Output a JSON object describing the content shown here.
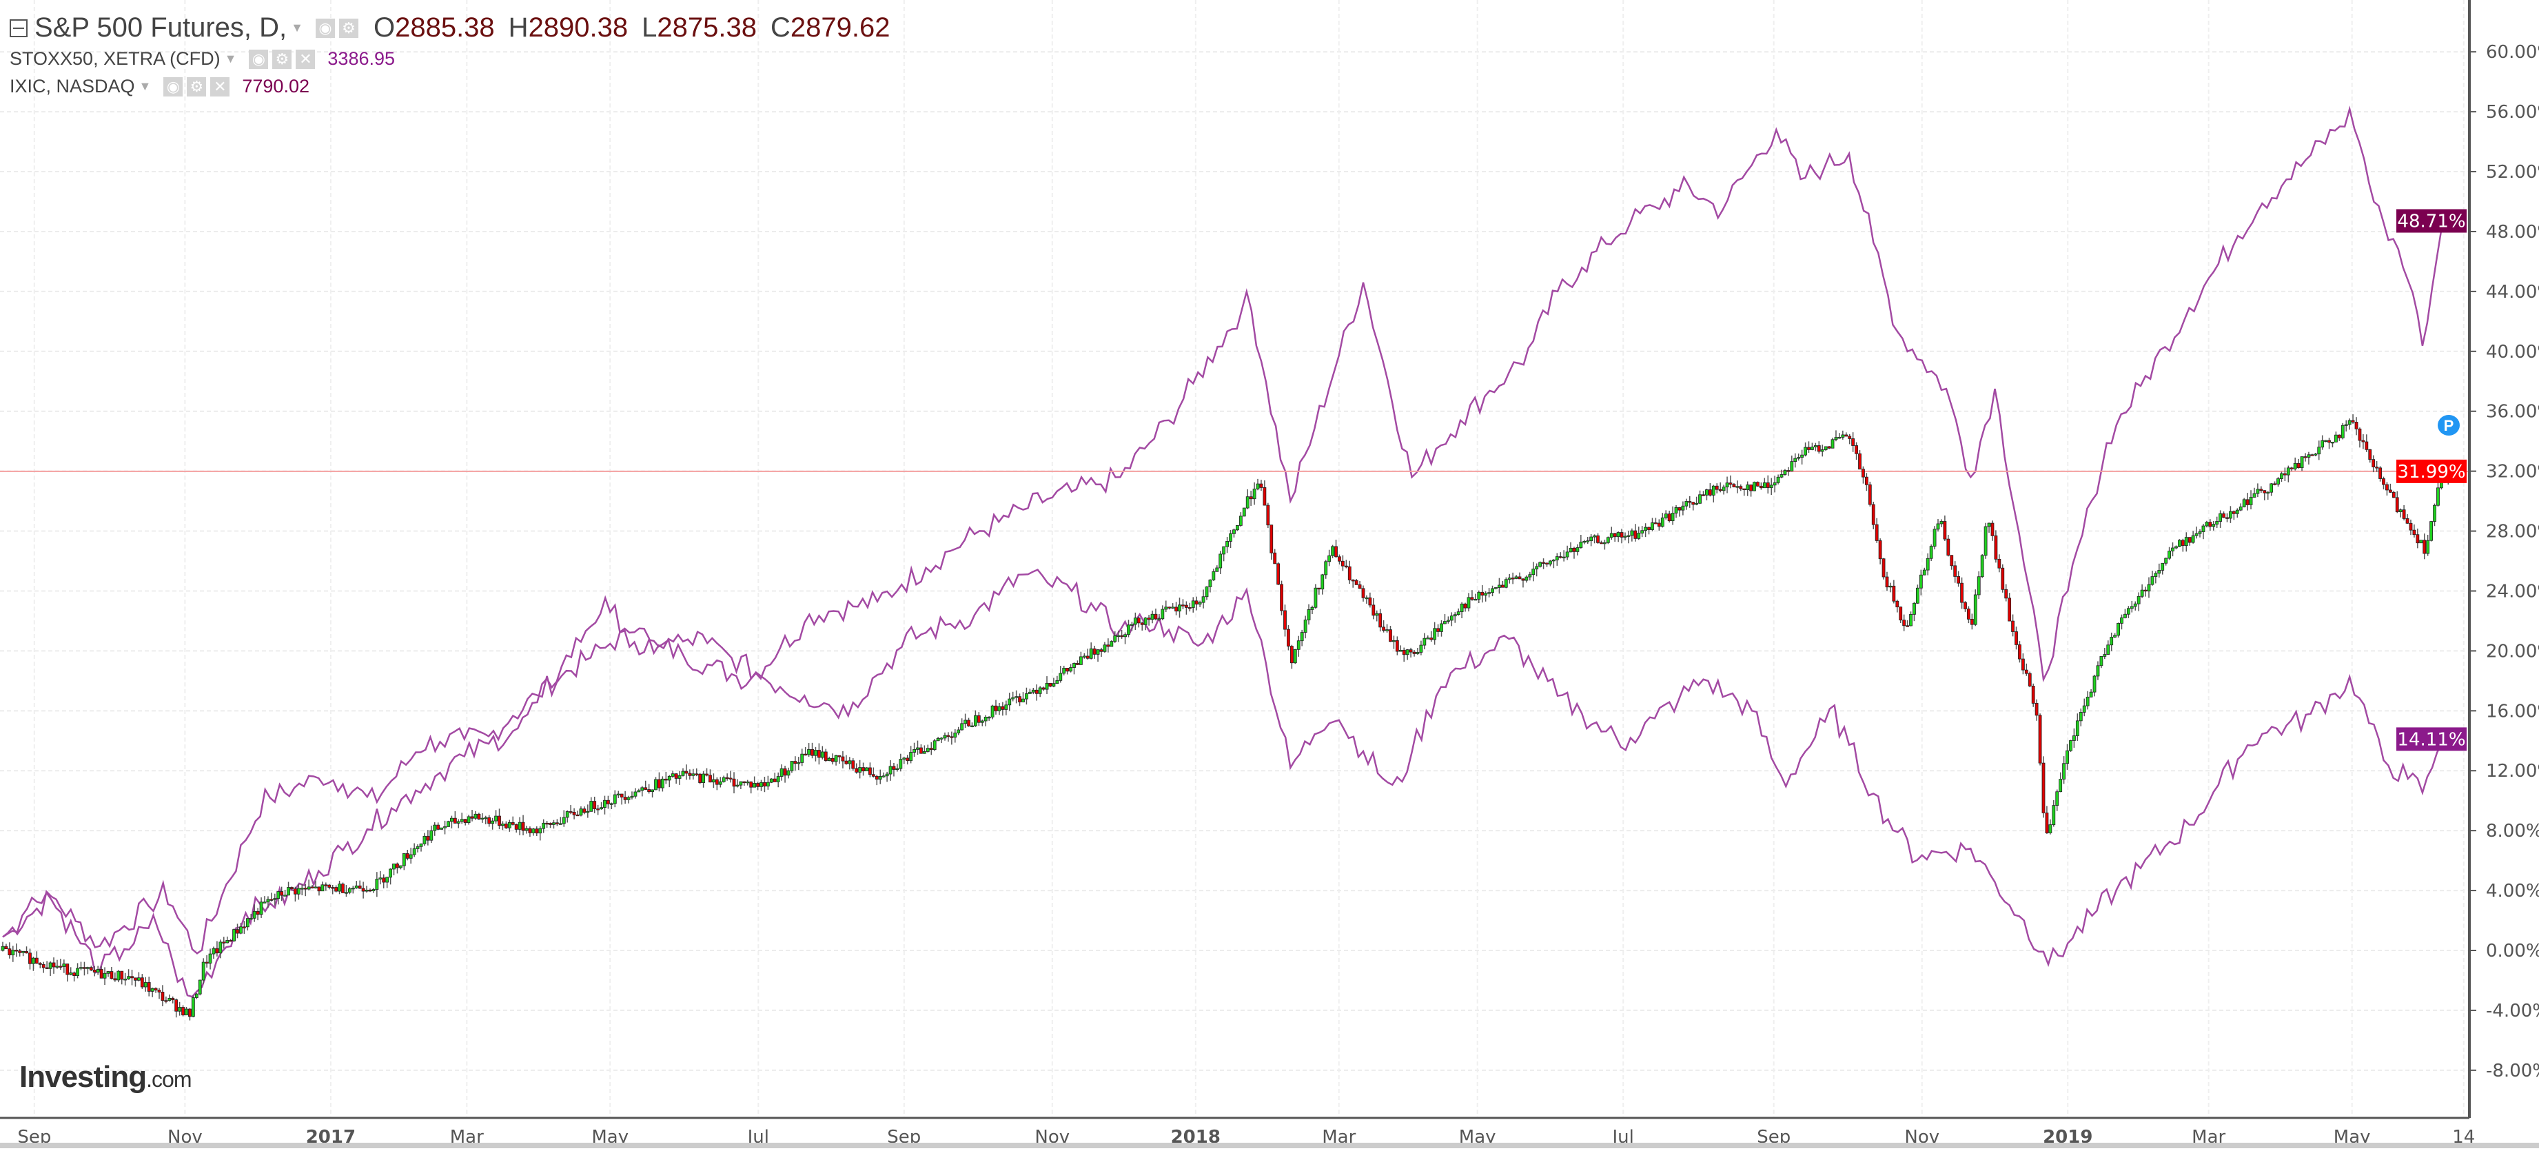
{
  "legend": {
    "main": {
      "title": "S&P 500 Futures, D,",
      "o_label": "O",
      "o": "2885.38",
      "h_label": "H",
      "h": "2890.38",
      "l_label": "L",
      "l": "2875.38",
      "c_label": "C",
      "c": "2879.62"
    },
    "stoxx": {
      "title": "STOXX50, XETRA (CFD)",
      "value": "3386.95",
      "color": "#8b1a8b"
    },
    "ixic": {
      "title": "IXIC, NASDAQ",
      "value": "7790.02",
      "color": "#7b0050"
    }
  },
  "logo": {
    "text": "Investing",
    "suffix": ".com"
  },
  "marker": {
    "label": "P"
  },
  "chart_data": {
    "type": "candlestick+line",
    "x_unit": "days since 2016-08-18",
    "ylabel": "% change",
    "ylim": [
      -10,
      62
    ],
    "y_ticks": [
      -8,
      -4,
      0,
      4,
      8,
      12,
      16,
      20,
      24,
      28,
      32,
      36,
      40,
      44,
      48,
      52,
      56,
      60
    ],
    "y_tick_labels": [
      "-8.00%",
      "-4.00%",
      "0.00%",
      "4.00%",
      "8.00%",
      "12.00%",
      "16.00%",
      "20.00%",
      "24.00%",
      "28.00%",
      "32.00%",
      "36.00%",
      "40.00%",
      "44.00%",
      "48.00%",
      "52.00%",
      "56.00%",
      "60.00%"
    ],
    "x_ticks": [
      {
        "label": "Sep",
        "t": 13
      },
      {
        "label": "Nov",
        "t": 75
      },
      {
        "label": "2017",
        "t": 135
      },
      {
        "label": "Mar",
        "t": 191
      },
      {
        "label": "May",
        "t": 250
      },
      {
        "label": "Jul",
        "t": 311
      },
      {
        "label": "Sep",
        "t": 371
      },
      {
        "label": "Nov",
        "t": 432
      },
      {
        "label": "2018",
        "t": 491
      },
      {
        "label": "Mar",
        "t": 550
      },
      {
        "label": "May",
        "t": 607
      },
      {
        "label": "Jul",
        "t": 667
      },
      {
        "label": "Sep",
        "t": 729
      },
      {
        "label": "Nov",
        "t": 790
      },
      {
        "label": "2019",
        "t": 850
      },
      {
        "label": "Mar",
        "t": 908
      },
      {
        "label": "May",
        "t": 967
      },
      {
        "label": "14",
        "t": 1013
      }
    ],
    "series": [
      {
        "name": "S&P 500 Futures",
        "style": "candles",
        "last_label": "31.99%",
        "last": 31.99,
        "label_color": "#ff0000",
        "points": [
          [
            0,
            0
          ],
          [
            27,
            -1.3
          ],
          [
            53,
            -1.8
          ],
          [
            77,
            -4.3
          ],
          [
            83,
            -0.8
          ],
          [
            107,
            3
          ],
          [
            117,
            4
          ],
          [
            153,
            4.3
          ],
          [
            177,
            8
          ],
          [
            193,
            9
          ],
          [
            220,
            8
          ],
          [
            240,
            9.5
          ],
          [
            280,
            11.7
          ],
          [
            313,
            11
          ],
          [
            333,
            13.3
          ],
          [
            360,
            11.7
          ],
          [
            400,
            15.4
          ],
          [
            433,
            18.1
          ],
          [
            467,
            22
          ],
          [
            493,
            23.3
          ],
          [
            517,
            31.6
          ],
          [
            527,
            22.4
          ],
          [
            530,
            19.2
          ],
          [
            547,
            26.8
          ],
          [
            573,
            20.3
          ],
          [
            580,
            19.7
          ],
          [
            600,
            23
          ],
          [
            627,
            25.1
          ],
          [
            653,
            27.3
          ],
          [
            673,
            27.8
          ],
          [
            707,
            31
          ],
          [
            727,
            31
          ],
          [
            740,
            33.2
          ],
          [
            760,
            34.3
          ],
          [
            767,
            31
          ],
          [
            773,
            25.7
          ],
          [
            783,
            21.4
          ],
          [
            797,
            28.9
          ],
          [
            810,
            21.4
          ],
          [
            817,
            28.9
          ],
          [
            827,
            21.4
          ],
          [
            837,
            16
          ],
          [
            841,
            7.3
          ],
          [
            850,
            13.3
          ],
          [
            867,
            20.8
          ],
          [
            893,
            26.8
          ],
          [
            933,
            31
          ],
          [
            967,
            35.2
          ],
          [
            980,
            31
          ],
          [
            997,
            26.8
          ],
          [
            1003,
            31
          ],
          [
            1010,
            31.99
          ]
        ]
      },
      {
        "name": "IXIC, NASDAQ",
        "style": "line",
        "color": "#a34aa3",
        "last_label": "48.71%",
        "last": 48.71,
        "label_color": "#7b0050",
        "points": [
          [
            0,
            0.9
          ],
          [
            20,
            3.6
          ],
          [
            40,
            0.3
          ],
          [
            67,
            3.9
          ],
          [
            80,
            -0.2
          ],
          [
            107,
            10
          ],
          [
            133,
            11.7
          ],
          [
            153,
            10
          ],
          [
            173,
            13.8
          ],
          [
            200,
            14.3
          ],
          [
            227,
            18
          ],
          [
            253,
            20.8
          ],
          [
            273,
            20.2
          ],
          [
            307,
            18
          ],
          [
            333,
            22.4
          ],
          [
            360,
            23.3
          ],
          [
            400,
            27.8
          ],
          [
            427,
            30
          ],
          [
            460,
            31.6
          ],
          [
            480,
            35.4
          ],
          [
            513,
            43.5
          ],
          [
            530,
            30
          ],
          [
            560,
            44.6
          ],
          [
            580,
            31.6
          ],
          [
            600,
            35.4
          ],
          [
            627,
            39.7
          ],
          [
            640,
            44
          ],
          [
            667,
            48.3
          ],
          [
            693,
            51
          ],
          [
            707,
            49.4
          ],
          [
            730,
            54.8
          ],
          [
            740,
            51.5
          ],
          [
            760,
            53.2
          ],
          [
            780,
            41.3
          ],
          [
            800,
            37.5
          ],
          [
            810,
            31.6
          ],
          [
            820,
            37.5
          ],
          [
            840,
            18.1
          ],
          [
            850,
            24
          ],
          [
            867,
            34.3
          ],
          [
            900,
            42.9
          ],
          [
            927,
            49.4
          ],
          [
            947,
            52.6
          ],
          [
            967,
            55.9
          ],
          [
            977,
            49.4
          ],
          [
            987,
            46.7
          ],
          [
            997,
            40.2
          ],
          [
            1003,
            48.3
          ],
          [
            1010,
            48.71
          ]
        ]
      },
      {
        "name": "STOXX50, XETRA (CFD)",
        "style": "line",
        "color": "#a34aa3",
        "last_label": "14.11%",
        "last": 14.11,
        "label_color": "#8b1a8b",
        "points": [
          [
            0,
            0.9
          ],
          [
            17,
            4.1
          ],
          [
            40,
            -1.3
          ],
          [
            63,
            1.9
          ],
          [
            77,
            -3.5
          ],
          [
            100,
            2.5
          ],
          [
            117,
            3.6
          ],
          [
            133,
            5.7
          ],
          [
            160,
            9.5
          ],
          [
            187,
            12.7
          ],
          [
            213,
            14.9
          ],
          [
            247,
            23
          ],
          [
            267,
            20.3
          ],
          [
            287,
            20.8
          ],
          [
            320,
            17.6
          ],
          [
            347,
            16
          ],
          [
            373,
            20.8
          ],
          [
            400,
            22.4
          ],
          [
            420,
            25.1
          ],
          [
            440,
            24
          ],
          [
            460,
            21.4
          ],
          [
            473,
            22
          ],
          [
            493,
            20.3
          ],
          [
            513,
            24
          ],
          [
            530,
            12.2
          ],
          [
            547,
            16
          ],
          [
            573,
            10.6
          ],
          [
            593,
            18.1
          ],
          [
            620,
            20.8
          ],
          [
            640,
            17
          ],
          [
            667,
            13.8
          ],
          [
            700,
            18.1
          ],
          [
            720,
            16
          ],
          [
            733,
            11.1
          ],
          [
            753,
            16
          ],
          [
            773,
            9.5
          ],
          [
            787,
            6.3
          ],
          [
            810,
            6.8
          ],
          [
            827,
            3
          ],
          [
            843,
            -0.8
          ],
          [
            867,
            3.6
          ],
          [
            900,
            8.4
          ],
          [
            927,
            14.3
          ],
          [
            947,
            15.4
          ],
          [
            967,
            18.1
          ],
          [
            980,
            12.7
          ],
          [
            997,
            10.6
          ],
          [
            1003,
            13.8
          ],
          [
            1010,
            14.11
          ]
        ]
      }
    ]
  }
}
